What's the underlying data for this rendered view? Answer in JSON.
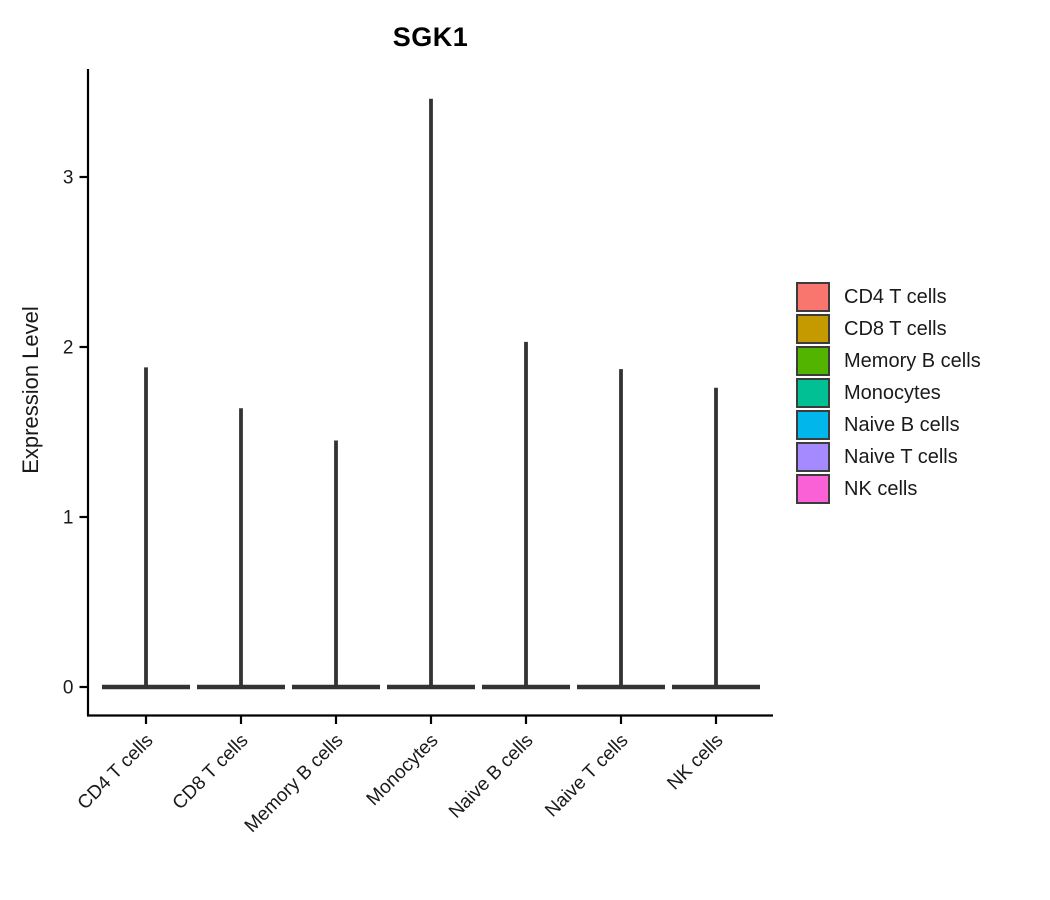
{
  "page": {
    "background": "#ffffff"
  },
  "chart_data": {
    "type": "violin",
    "title": "SGK1",
    "ylabel": "Expression Level",
    "xlabel": "",
    "yticks": [
      0,
      1,
      2,
      3
    ],
    "ylim": [
      -0.17,
      3.64
    ],
    "grid": false,
    "legend_position": "right",
    "axis_color": "#000000",
    "violin_stroke_color": "#333333",
    "tick_label_color": "#1a1a1a",
    "categories": [
      "CD4 T cells",
      "CD8 T cells",
      "Memory B cells",
      "Monocytes",
      "Naive B cells",
      "Naive T cells",
      "NK cells"
    ],
    "series": [
      {
        "name": "CD4 T cells",
        "color": "#F8766D",
        "min": 0,
        "max": 1.88,
        "bulk_at": 0
      },
      {
        "name": "CD8 T cells",
        "color": "#C49A00",
        "min": 0,
        "max": 1.64,
        "bulk_at": 0
      },
      {
        "name": "Memory B cells",
        "color": "#53B400",
        "min": 0,
        "max": 1.45,
        "bulk_at": 0
      },
      {
        "name": "Monocytes",
        "color": "#00C094",
        "min": 0,
        "max": 3.46,
        "bulk_at": 0
      },
      {
        "name": "Naive B cells",
        "color": "#00B6EB",
        "min": 0,
        "max": 2.03,
        "bulk_at": 0
      },
      {
        "name": "Naive T cells",
        "color": "#A58AFF",
        "min": 0,
        "max": 1.87,
        "bulk_at": 0
      },
      {
        "name": "NK cells",
        "color": "#FB61D7",
        "min": 0,
        "max": 1.76,
        "bulk_at": 0
      }
    ]
  }
}
